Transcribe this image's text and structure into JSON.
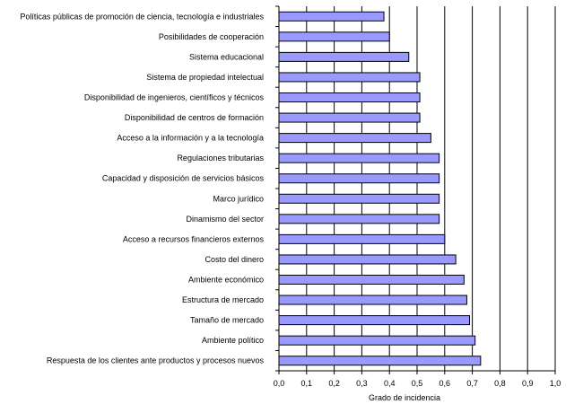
{
  "chart_data": {
    "type": "bar",
    "orientation": "horizontal",
    "categories": [
      "Políticas públicas de promoción de ciencia, tecnología e industriales",
      "Posibilidades de cooperación",
      "Sistema educacional",
      "Sistema de propiedad intelectual",
      "Disponibilidad de ingenieros, científicos y técnicos",
      "Disponibilidad de centros de formación",
      "Acceso a la información y a la tecnología",
      "Regulaciones tributarias",
      "Capacidad y disposición de servicios básicos",
      "Marco jurídico",
      "Dinamismo del sector",
      "Acceso a recursos financieros externos",
      "Costo del dinero",
      "Ambiente económico",
      "Estructura de mercado",
      "Tamaño de mercado",
      "Ambiente político",
      "Respuesta de los clientes ante productos y procesos nuevos"
    ],
    "values": [
      0.38,
      0.4,
      0.47,
      0.51,
      0.51,
      0.51,
      0.55,
      0.58,
      0.58,
      0.58,
      0.58,
      0.6,
      0.64,
      0.67,
      0.68,
      0.69,
      0.71,
      0.73
    ],
    "xlabel": "Grado de incidencia",
    "xlim": [
      0,
      1.0
    ],
    "xticks": [
      "0,0",
      "0,1",
      "0,2",
      "0,3",
      "0,4",
      "0,5",
      "0,6",
      "0,7",
      "0,8",
      "0,9",
      "1,0"
    ],
    "grid": "vertical",
    "bar_color": "#9999ff",
    "bar_edge_color": "#000000"
  }
}
